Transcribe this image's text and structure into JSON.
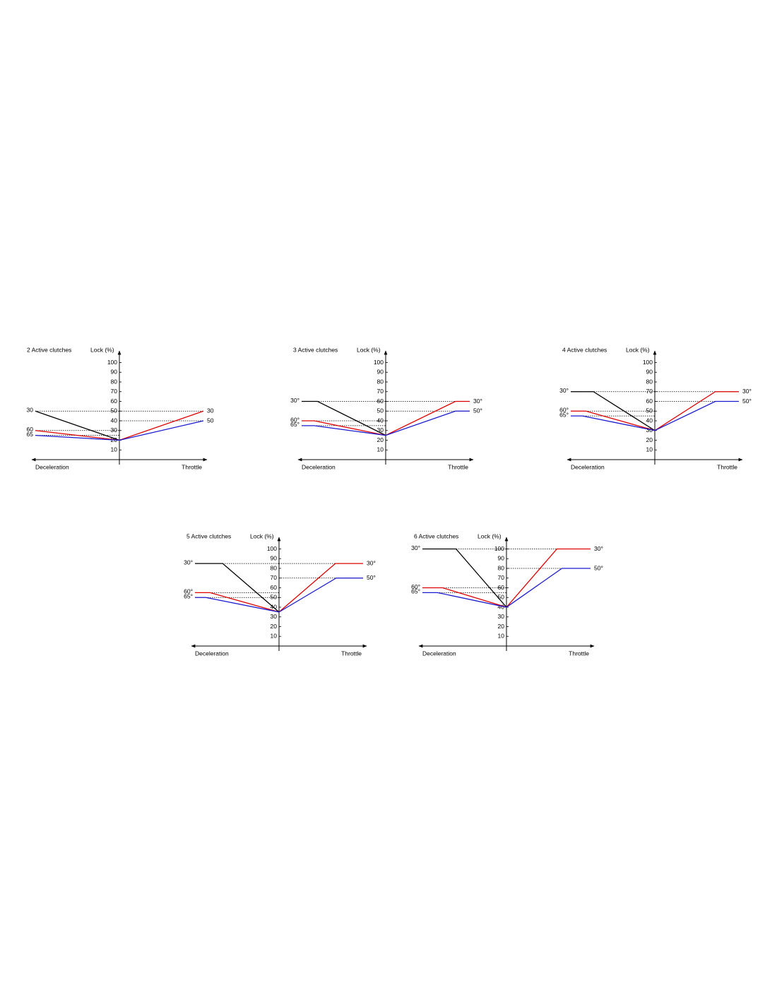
{
  "chart_data": [
    {
      "type": "line",
      "title": "2 Active clutches",
      "ylabel": "Lock (%)",
      "left_label": "Deceleration",
      "right_label": "Throttle",
      "xlim": [
        -1,
        1
      ],
      "ylim": [
        0,
        112
      ],
      "yticks": [
        10,
        20,
        30,
        40,
        50,
        60,
        70,
        80,
        90,
        100
      ],
      "series": [
        {
          "color": "#000000",
          "start_label": "30",
          "x": [
            -1,
            0
          ],
          "values": [
            50,
            20
          ]
        },
        {
          "color": "#e00000",
          "start_label": "60",
          "end_label": "30",
          "x": [
            -1,
            0,
            1
          ],
          "values": [
            30,
            20,
            50
          ]
        },
        {
          "color": "#1a1ad0",
          "start_label": "65",
          "end_label": "50",
          "x": [
            -1,
            0,
            1
          ],
          "values": [
            25,
            20,
            40
          ]
        }
      ]
    },
    {
      "type": "line",
      "title": "3 Active clutches",
      "ylabel": "Lock (%)",
      "left_label": "Deceleration",
      "right_label": "Throttle",
      "xlim": [
        -1,
        1
      ],
      "ylim": [
        0,
        112
      ],
      "yticks": [
        10,
        20,
        30,
        40,
        50,
        60,
        70,
        80,
        90,
        100
      ],
      "series": [
        {
          "color": "#000000",
          "start_label": "30°",
          "x": [
            -1,
            -0.81,
            0
          ],
          "values": [
            60,
            60,
            25
          ]
        },
        {
          "color": "#e00000",
          "start_label": "60°",
          "end_label": "30°",
          "x": [
            -1,
            -0.85,
            0,
            0.83,
            1
          ],
          "values": [
            40,
            40,
            25,
            60,
            60
          ]
        },
        {
          "color": "#1a1ad0",
          "start_label": "65°",
          "end_label": "50°",
          "x": [
            -1,
            -0.85,
            0,
            0.83,
            1
          ],
          "values": [
            35,
            35,
            25,
            50,
            50
          ]
        }
      ]
    },
    {
      "type": "line",
      "title": "4 Active clutches",
      "ylabel": "Lock (%)",
      "left_label": "Deceleration",
      "right_label": "Throttle",
      "xlim": [
        -1,
        1
      ],
      "ylim": [
        0,
        112
      ],
      "yticks": [
        10,
        20,
        30,
        40,
        50,
        60,
        70,
        80,
        90,
        100
      ],
      "series": [
        {
          "color": "#000000",
          "start_label": "30°",
          "x": [
            -1,
            -0.73,
            0
          ],
          "values": [
            70,
            70,
            30
          ]
        },
        {
          "color": "#e00000",
          "start_label": "60°",
          "end_label": "30°",
          "x": [
            -1,
            -0.82,
            0,
            0.72,
            1
          ],
          "values": [
            50,
            50,
            30,
            70,
            70
          ]
        },
        {
          "color": "#1a1ad0",
          "start_label": "65°",
          "end_label": "50°",
          "x": [
            -1,
            -0.86,
            0,
            0.72,
            1
          ],
          "values": [
            45,
            45,
            30,
            60,
            60
          ]
        }
      ]
    },
    {
      "type": "line",
      "title": "5 Active clutches",
      "ylabel": "Lock (%)",
      "left_label": "Deceleration",
      "right_label": "Throttle",
      "xlim": [
        -1,
        1
      ],
      "ylim": [
        0,
        112
      ],
      "yticks": [
        10,
        20,
        30,
        40,
        50,
        60,
        70,
        80,
        90,
        100
      ],
      "series": [
        {
          "color": "#000000",
          "start_label": "30°",
          "x": [
            -1,
            -0.67,
            0
          ],
          "values": [
            85,
            85,
            35
          ]
        },
        {
          "color": "#e00000",
          "start_label": "60°",
          "end_label": "30°",
          "x": [
            -1,
            -0.82,
            0,
            0.67,
            1
          ],
          "values": [
            55,
            55,
            35,
            85,
            85
          ]
        },
        {
          "color": "#1a1ad0",
          "start_label": "65°",
          "end_label": "50°",
          "x": [
            -1,
            -0.87,
            0,
            0.68,
            1
          ],
          "values": [
            50,
            50,
            35,
            70,
            70
          ]
        }
      ]
    },
    {
      "type": "line",
      "title": "6 Active clutches",
      "ylabel": "Lock (%)",
      "left_label": "Deceleration",
      "right_label": "Throttle",
      "xlim": [
        -1,
        1
      ],
      "ylim": [
        0,
        112
      ],
      "yticks": [
        10,
        20,
        30,
        40,
        50,
        60,
        70,
        80,
        90,
        100
      ],
      "series": [
        {
          "color": "#000000",
          "start_label": "30°",
          "x": [
            -1,
            -0.6,
            0
          ],
          "values": [
            100,
            100,
            40
          ]
        },
        {
          "color": "#e00000",
          "start_label": "60°",
          "end_label": "30°",
          "x": [
            -1,
            -0.76,
            0,
            0.6,
            1
          ],
          "values": [
            60,
            60,
            40,
            100,
            100
          ]
        },
        {
          "color": "#1a1ad0",
          "start_label": "65°",
          "end_label": "50°",
          "x": [
            -1,
            -0.82,
            0,
            0.66,
            1
          ],
          "values": [
            55,
            55,
            40,
            80,
            80
          ]
        }
      ]
    }
  ]
}
